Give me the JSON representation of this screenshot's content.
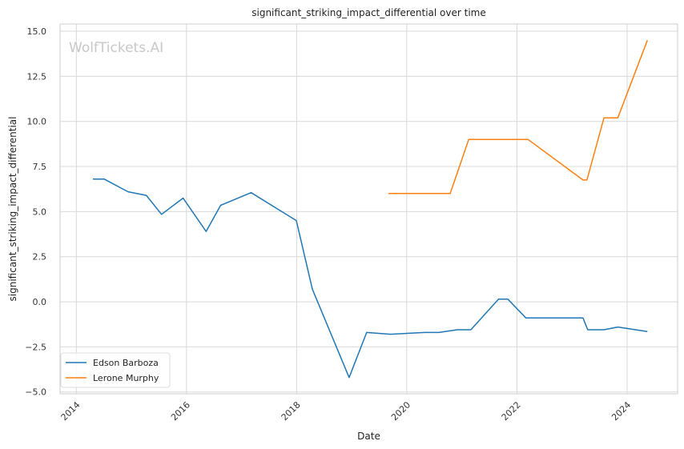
{
  "chart_data": {
    "type": "line",
    "title": "significant_striking_impact_differential over time",
    "xlabel": "Date",
    "ylabel": "significant_striking_impact_differential",
    "watermark": "WolfTickets.AI",
    "xlim": [
      "2013-09-15",
      "2024-12-01"
    ],
    "ylim": [
      -5.1,
      15.4
    ],
    "x_ticks": [
      {
        "value": "2014-01-01",
        "label": "2014"
      },
      {
        "value": "2016-01-01",
        "label": "2016"
      },
      {
        "value": "2018-01-01",
        "label": "2018"
      },
      {
        "value": "2020-01-01",
        "label": "2020"
      },
      {
        "value": "2022-01-01",
        "label": "2022"
      },
      {
        "value": "2024-01-01",
        "label": "2024"
      }
    ],
    "y_ticks": [
      {
        "value": -5.0,
        "label": "−5.0"
      },
      {
        "value": -2.5,
        "label": "−2.5"
      },
      {
        "value": 0.0,
        "label": "0.0"
      },
      {
        "value": 2.5,
        "label": "2.5"
      },
      {
        "value": 5.0,
        "label": "5.0"
      },
      {
        "value": 7.5,
        "label": "7.5"
      },
      {
        "value": 10.0,
        "label": "10.0"
      },
      {
        "value": 12.5,
        "label": "12.5"
      },
      {
        "value": 15.0,
        "label": "15.0"
      }
    ],
    "grid": true,
    "legend_position": "bottom-left",
    "series": [
      {
        "name": "Edson Barboza",
        "color": "#1f77b4",
        "points": [
          {
            "x": "2014-04-20",
            "y": 6.8
          },
          {
            "x": "2014-07-05",
            "y": 6.8
          },
          {
            "x": "2014-12-10",
            "y": 6.1
          },
          {
            "x": "2015-04-10",
            "y": 5.9
          },
          {
            "x": "2015-07-20",
            "y": 4.85
          },
          {
            "x": "2015-12-10",
            "y": 5.75
          },
          {
            "x": "2016-05-10",
            "y": 3.9
          },
          {
            "x": "2016-08-15",
            "y": 5.35
          },
          {
            "x": "2017-03-05",
            "y": 6.05
          },
          {
            "x": "2017-12-30",
            "y": 4.5
          },
          {
            "x": "2018-04-15",
            "y": 0.7
          },
          {
            "x": "2018-12-15",
            "y": -4.2
          },
          {
            "x": "2019-04-10",
            "y": -1.7
          },
          {
            "x": "2019-09-15",
            "y": -1.8
          },
          {
            "x": "2020-05-01",
            "y": -1.7
          },
          {
            "x": "2020-08-01",
            "y": -1.7
          },
          {
            "x": "2020-12-01",
            "y": -1.55
          },
          {
            "x": "2021-03-01",
            "y": -1.55
          },
          {
            "x": "2021-09-01",
            "y": 0.15
          },
          {
            "x": "2021-11-01",
            "y": 0.15
          },
          {
            "x": "2022-03-01",
            "y": -0.9
          },
          {
            "x": "2022-07-01",
            "y": -0.9
          },
          {
            "x": "2023-03-15",
            "y": -0.9
          },
          {
            "x": "2023-04-15",
            "y": -1.55
          },
          {
            "x": "2023-08-01",
            "y": -1.55
          },
          {
            "x": "2023-11-01",
            "y": -1.4
          },
          {
            "x": "2024-05-15",
            "y": -1.65
          }
        ]
      },
      {
        "name": "Lerone Murphy",
        "color": "#ff7f0e",
        "points": [
          {
            "x": "2019-09-01",
            "y": 6.0
          },
          {
            "x": "2020-10-15",
            "y": 6.0
          },
          {
            "x": "2021-02-15",
            "y": 9.0
          },
          {
            "x": "2022-03-15",
            "y": 9.0
          },
          {
            "x": "2023-03-15",
            "y": 6.75
          },
          {
            "x": "2023-04-10",
            "y": 6.75
          },
          {
            "x": "2023-08-01",
            "y": 10.2
          },
          {
            "x": "2023-11-01",
            "y": 10.2
          },
          {
            "x": "2024-05-15",
            "y": 14.5
          }
        ]
      }
    ]
  }
}
